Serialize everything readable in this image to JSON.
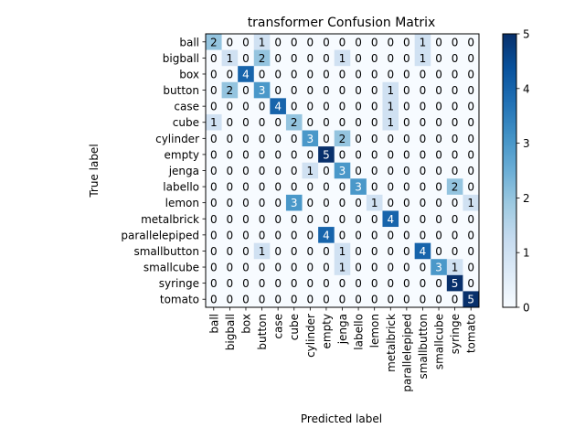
{
  "chart_data": {
    "type": "heatmap",
    "title": "transformer Confusion Matrix",
    "xlabel": "Predicted label",
    "ylabel": "True label",
    "labels": [
      "ball",
      "bigball",
      "box",
      "button",
      "case",
      "cube",
      "cylinder",
      "empty",
      "jenga",
      "labello",
      "lemon",
      "metalbrick",
      "parallelepiped",
      "smallbutton",
      "smallcube",
      "syringe",
      "tomato"
    ],
    "matrix": [
      [
        2,
        0,
        0,
        1,
        0,
        0,
        0,
        0,
        0,
        0,
        0,
        0,
        0,
        1,
        0,
        0,
        0
      ],
      [
        0,
        1,
        0,
        2,
        0,
        0,
        0,
        0,
        1,
        0,
        0,
        0,
        0,
        1,
        0,
        0,
        0
      ],
      [
        0,
        0,
        4,
        0,
        0,
        0,
        0,
        0,
        0,
        0,
        0,
        0,
        0,
        0,
        0,
        0,
        0
      ],
      [
        0,
        2,
        0,
        3,
        0,
        0,
        0,
        0,
        0,
        0,
        0,
        1,
        0,
        0,
        0,
        0,
        0
      ],
      [
        0,
        0,
        0,
        0,
        4,
        0,
        0,
        0,
        0,
        0,
        0,
        1,
        0,
        0,
        0,
        0,
        0
      ],
      [
        1,
        0,
        0,
        0,
        0,
        2,
        0,
        0,
        0,
        0,
        0,
        1,
        0,
        0,
        0,
        0,
        0
      ],
      [
        0,
        0,
        0,
        0,
        0,
        0,
        3,
        0,
        2,
        0,
        0,
        0,
        0,
        0,
        0,
        0,
        0
      ],
      [
        0,
        0,
        0,
        0,
        0,
        0,
        0,
        5,
        0,
        0,
        0,
        0,
        0,
        0,
        0,
        0,
        0
      ],
      [
        0,
        0,
        0,
        0,
        0,
        0,
        1,
        0,
        3,
        0,
        0,
        0,
        0,
        0,
        0,
        0,
        0
      ],
      [
        0,
        0,
        0,
        0,
        0,
        0,
        0,
        0,
        0,
        3,
        0,
        0,
        0,
        0,
        0,
        2,
        0
      ],
      [
        0,
        0,
        0,
        0,
        0,
        3,
        0,
        0,
        0,
        0,
        1,
        0,
        0,
        0,
        0,
        0,
        1
      ],
      [
        0,
        0,
        0,
        0,
        0,
        0,
        0,
        0,
        0,
        0,
        0,
        4,
        0,
        0,
        0,
        0,
        0
      ],
      [
        0,
        0,
        0,
        0,
        0,
        0,
        0,
        4,
        0,
        0,
        0,
        0,
        0,
        0,
        0,
        0,
        0
      ],
      [
        0,
        0,
        0,
        1,
        0,
        0,
        0,
        0,
        1,
        0,
        0,
        0,
        0,
        4,
        0,
        0,
        0
      ],
      [
        0,
        0,
        0,
        0,
        0,
        0,
        0,
        0,
        1,
        0,
        0,
        0,
        0,
        0,
        3,
        1,
        0
      ],
      [
        0,
        0,
        0,
        0,
        0,
        0,
        0,
        0,
        0,
        0,
        0,
        0,
        0,
        0,
        0,
        5,
        0
      ],
      [
        0,
        0,
        0,
        0,
        0,
        0,
        0,
        0,
        0,
        0,
        0,
        0,
        0,
        0,
        0,
        0,
        5
      ]
    ],
    "colormap": "Blues",
    "vmin": 0,
    "vmax": 5,
    "colorbar_ticks": [
      0,
      1,
      2,
      3,
      4,
      5
    ],
    "colors": {
      "low": "#f7fbff",
      "high": "#08306b"
    }
  }
}
